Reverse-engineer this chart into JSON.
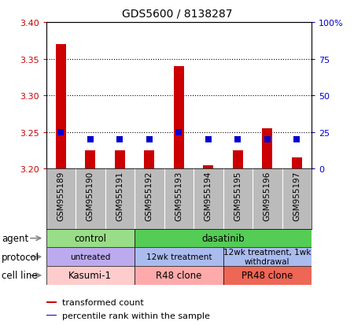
{
  "title": "GDS5600 / 8138287",
  "samples": [
    "GSM955189",
    "GSM955190",
    "GSM955191",
    "GSM955192",
    "GSM955193",
    "GSM955194",
    "GSM955195",
    "GSM955196",
    "GSM955197"
  ],
  "transformed_counts": [
    3.37,
    3.225,
    3.225,
    3.225,
    3.34,
    3.205,
    3.225,
    3.255,
    3.215
  ],
  "percentile_ranks": [
    25,
    20,
    20,
    20,
    25,
    20,
    20,
    20,
    20
  ],
  "ylim_left": [
    3.2,
    3.4
  ],
  "ylim_right": [
    0,
    100
  ],
  "yticks_left": [
    3.2,
    3.25,
    3.3,
    3.35,
    3.4
  ],
  "yticks_right": [
    0,
    25,
    50,
    75,
    100
  ],
  "ytick_labels_right": [
    "0",
    "25",
    "50",
    "75",
    "100%"
  ],
  "hlines": [
    3.25,
    3.3,
    3.35
  ],
  "bar_color": "#cc0000",
  "marker_color": "#0000cc",
  "bar_width": 0.35,
  "agent_groups": [
    {
      "label": "control",
      "start": 0,
      "end": 3,
      "color": "#99dd88"
    },
    {
      "label": "dasatinib",
      "start": 3,
      "end": 9,
      "color": "#55cc55"
    }
  ],
  "protocol_groups": [
    {
      "label": "untreated",
      "start": 0,
      "end": 3,
      "color": "#bbaaee"
    },
    {
      "label": "12wk treatment",
      "start": 3,
      "end": 6,
      "color": "#aabbee"
    },
    {
      "label": "12wk treatment, 1wk\nwithdrawal",
      "start": 6,
      "end": 9,
      "color": "#aabbee"
    }
  ],
  "cellline_groups": [
    {
      "label": "Kasumi-1",
      "start": 0,
      "end": 3,
      "color": "#ffcccc"
    },
    {
      "label": "R48 clone",
      "start": 3,
      "end": 6,
      "color": "#ffaaaa"
    },
    {
      "label": "PR48 clone",
      "start": 6,
      "end": 9,
      "color": "#ee6655"
    }
  ],
  "row_labels": [
    "agent",
    "protocol",
    "cell line"
  ],
  "legend_items": [
    {
      "color": "#cc0000",
      "label": "transformed count"
    },
    {
      "color": "#0000cc",
      "label": "percentile rank within the sample"
    }
  ],
  "left_tick_color": "#cc0000",
  "right_tick_color": "#0000cc",
  "tick_label_area_color": "#bbbbbb",
  "arrow_color": "#888888"
}
